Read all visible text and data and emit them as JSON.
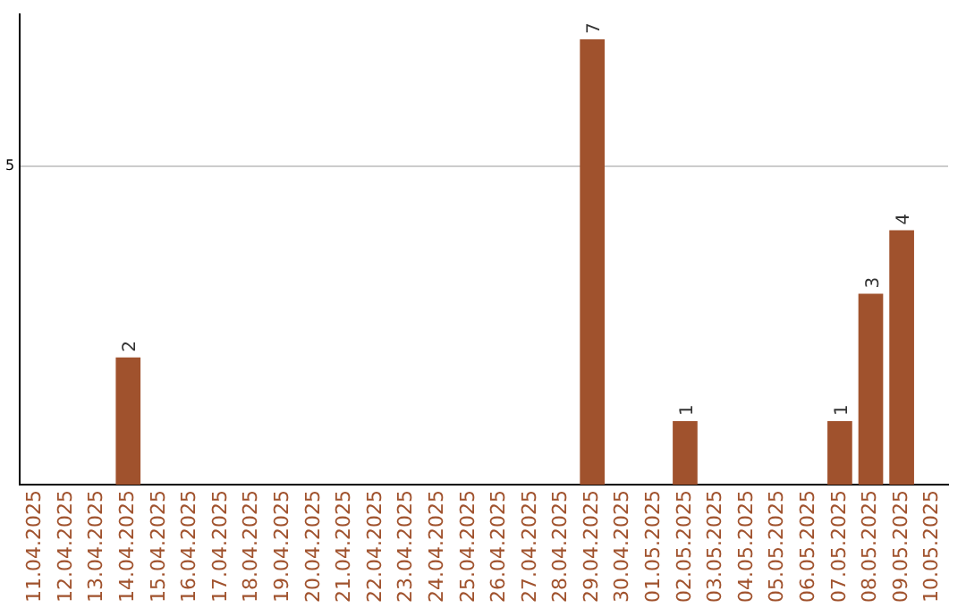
{
  "chart_data": {
    "type": "bar",
    "categories": [
      "11.04.2025",
      "12.04.2025",
      "13.04.2025",
      "14.04.2025",
      "15.04.2025",
      "16.04.2025",
      "17.04.2025",
      "18.04.2025",
      "19.04.2025",
      "20.04.2025",
      "21.04.2025",
      "22.04.2025",
      "23.04.2025",
      "24.04.2025",
      "25.04.2025",
      "26.04.2025",
      "27.04.2025",
      "28.04.2025",
      "29.04.2025",
      "30.04.2025",
      "01.05.2025",
      "02.05.2025",
      "03.05.2025",
      "04.05.2025",
      "05.05.2025",
      "06.05.2025",
      "07.05.2025",
      "08.05.2025",
      "09.05.2025",
      "10.05.2025"
    ],
    "values": [
      null,
      null,
      null,
      2,
      null,
      null,
      null,
      null,
      null,
      null,
      null,
      null,
      null,
      null,
      null,
      null,
      null,
      null,
      7,
      null,
      null,
      1,
      null,
      null,
      null,
      null,
      1,
      3,
      4,
      null
    ],
    "color": "#a0522d",
    "ylim": [
      0,
      7.4
    ],
    "yticks": [
      5
    ],
    "grid": "y",
    "data_labels": true,
    "legend": false
  }
}
